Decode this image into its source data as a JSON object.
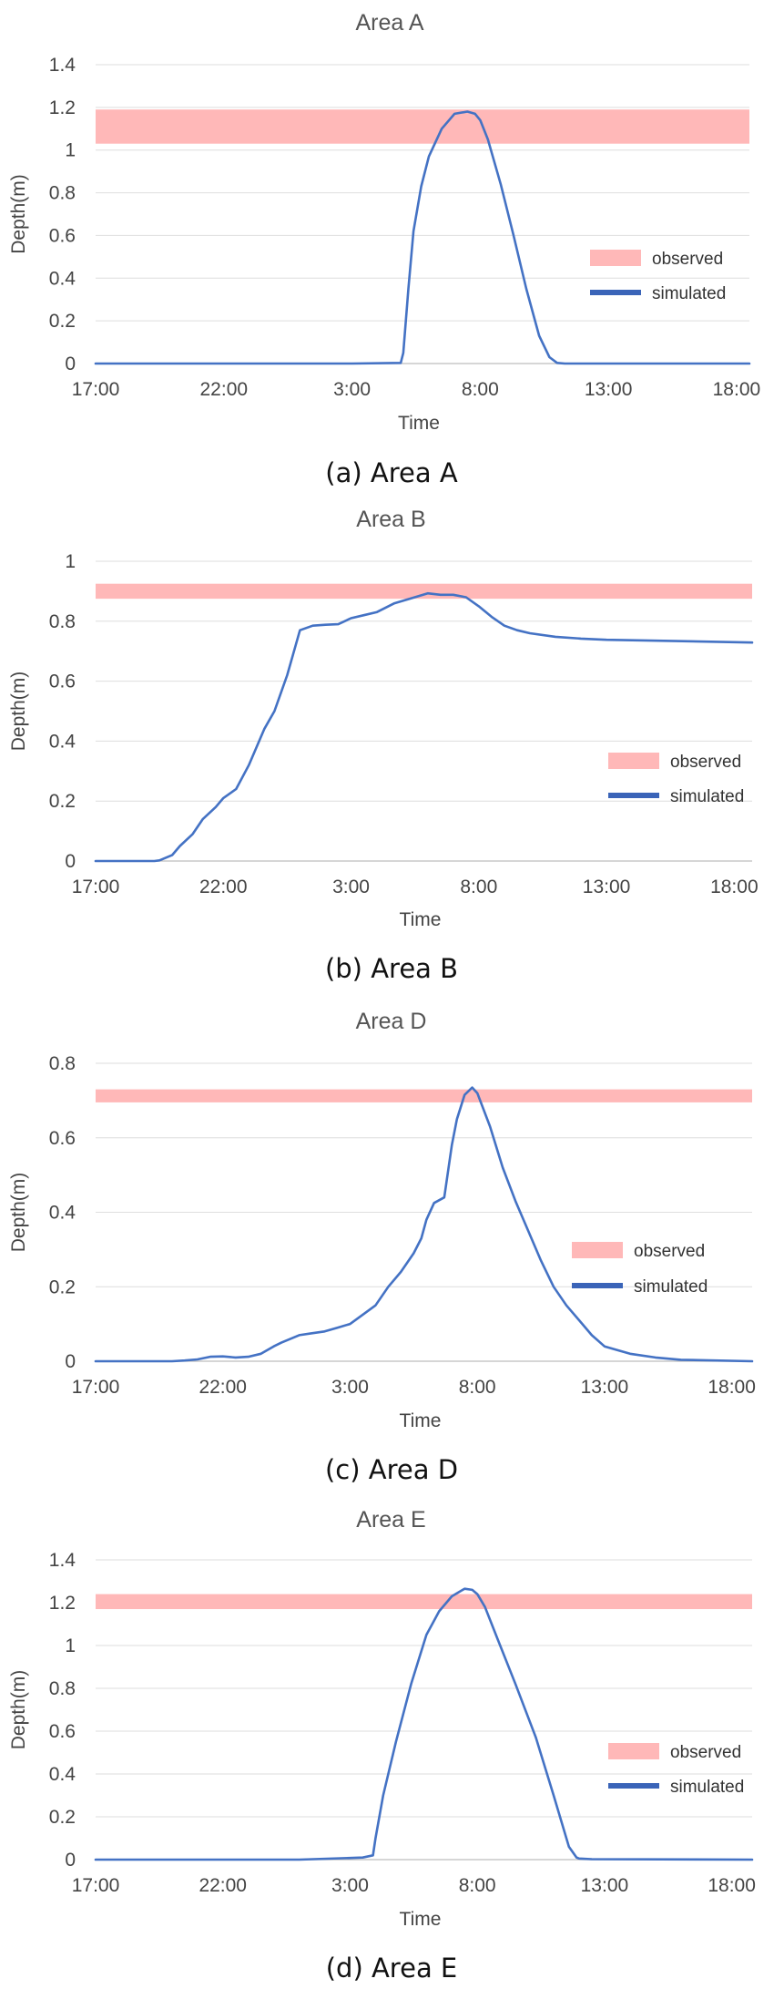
{
  "chart_data": [
    {
      "type": "line",
      "title": "Area A",
      "caption": "(a) Area A",
      "xlabel": "Time",
      "ylabel": "Depth(m)",
      "x_ticks": [
        0,
        5,
        10,
        15,
        20,
        25
      ],
      "x_tick_labels": [
        "17:00",
        "22:00",
        "3:00",
        "8:00",
        "13:00",
        "18:00"
      ],
      "xlim": [
        0,
        25.5
      ],
      "y_ticks": [
        0,
        0.2,
        0.4,
        0.6,
        0.8,
        1,
        1.2,
        1.4
      ],
      "y_tick_labels": [
        "0",
        "0.2",
        "0.4",
        "0.6",
        "0.8",
        "1",
        "1.2",
        "1.4"
      ],
      "ylim": [
        0,
        1.4
      ],
      "observed_band": [
        1.03,
        1.19
      ],
      "legend": [
        "observed",
        "simulated"
      ],
      "legend_position": "right",
      "colors": {
        "observed": "#ffb8b8",
        "simulated": "#4472c4"
      },
      "simulated": {
        "x": [
          0,
          10,
          11.9,
          12.0,
          12.2,
          12.4,
          12.7,
          13.0,
          13.5,
          14.0,
          14.5,
          14.8,
          15.0,
          15.3,
          15.8,
          16.3,
          16.8,
          17.3,
          17.7,
          18.0,
          18.3,
          25.5
        ],
        "y": [
          0,
          0,
          0.003,
          0.05,
          0.35,
          0.62,
          0.83,
          0.97,
          1.1,
          1.17,
          1.18,
          1.17,
          1.14,
          1.05,
          0.84,
          0.6,
          0.35,
          0.13,
          0.03,
          0.003,
          0,
          0
        ]
      }
    },
    {
      "type": "line",
      "title": "Area B",
      "caption": "(b) Area B",
      "xlabel": "Time",
      "ylabel": "Depth(m)",
      "x_ticks": [
        0,
        5,
        10,
        15,
        20,
        25
      ],
      "x_tick_labels": [
        "17:00",
        "22:00",
        "3:00",
        "8:00",
        "13:00",
        "18:00"
      ],
      "xlim": [
        0,
        25.7
      ],
      "y_ticks": [
        0,
        0.2,
        0.4,
        0.6,
        0.8,
        1
      ],
      "y_tick_labels": [
        "0",
        "0.2",
        "0.4",
        "0.6",
        "0.8",
        "1"
      ],
      "ylim": [
        0,
        1
      ],
      "observed_band": [
        0.875,
        0.925
      ],
      "legend": [
        "observed",
        "simulated"
      ],
      "legend_position": "right",
      "colors": {
        "observed": "#ffb8b8",
        "simulated": "#4472c4"
      },
      "simulated": {
        "x": [
          0,
          2.3,
          2.5,
          3.0,
          3.3,
          3.8,
          4.2,
          4.7,
          5.0,
          5.5,
          6.0,
          6.6,
          7.0,
          7.5,
          8.0,
          8.5,
          9.0,
          9.5,
          10.0,
          10.5,
          11.0,
          11.7,
          12.3,
          13.0,
          13.5,
          14.0,
          14.5,
          15.0,
          15.5,
          16.0,
          16.5,
          17.0,
          18.0,
          19.0,
          20.0,
          22.0,
          25.7
        ],
        "y": [
          0,
          0,
          0.002,
          0.02,
          0.05,
          0.09,
          0.14,
          0.18,
          0.21,
          0.24,
          0.32,
          0.44,
          0.5,
          0.62,
          0.77,
          0.785,
          0.788,
          0.79,
          0.81,
          0.82,
          0.83,
          0.86,
          0.875,
          0.893,
          0.888,
          0.888,
          0.88,
          0.85,
          0.815,
          0.785,
          0.77,
          0.76,
          0.748,
          0.742,
          0.738,
          0.735,
          0.729
        ]
      }
    },
    {
      "type": "line",
      "title": "Area D",
      "caption": "(c) Area D",
      "xlabel": "Time",
      "ylabel": "Depth(m)",
      "x_ticks": [
        0,
        5,
        10,
        15,
        20,
        25
      ],
      "x_tick_labels": [
        "17:00",
        "22:00",
        "3:00",
        "8:00",
        "13:00",
        "18:00"
      ],
      "xlim": [
        0,
        25.8
      ],
      "y_ticks": [
        0,
        0.2,
        0.4,
        0.6,
        0.8
      ],
      "y_tick_labels": [
        "0",
        "0.2",
        "0.4",
        "0.6",
        "0.8"
      ],
      "ylim": [
        0,
        0.8
      ],
      "observed_band": [
        0.695,
        0.73
      ],
      "legend": [
        "observed",
        "simulated"
      ],
      "legend_position": "right",
      "colors": {
        "observed": "#ffb8b8",
        "simulated": "#4472c4"
      },
      "simulated": {
        "x": [
          0,
          3.0,
          3.5,
          4.0,
          4.5,
          5.0,
          5.5,
          6.0,
          6.5,
          7.0,
          7.3,
          8.0,
          8.5,
          9.0,
          9.5,
          10.0,
          10.5,
          11.0,
          11.5,
          12.0,
          12.5,
          12.8,
          13.0,
          13.3,
          13.7,
          14.0,
          14.2,
          14.5,
          14.8,
          15.0,
          15.5,
          16.0,
          16.5,
          17.0,
          17.5,
          18.0,
          18.5,
          19.0,
          19.5,
          20.0,
          21.0,
          22.0,
          23.0,
          25.8
        ],
        "y": [
          0,
          0,
          0.002,
          0.005,
          0.012,
          0.013,
          0.01,
          0.012,
          0.02,
          0.04,
          0.05,
          0.07,
          0.075,
          0.08,
          0.09,
          0.1,
          0.125,
          0.15,
          0.2,
          0.24,
          0.29,
          0.33,
          0.38,
          0.425,
          0.44,
          0.58,
          0.65,
          0.715,
          0.735,
          0.72,
          0.63,
          0.52,
          0.43,
          0.35,
          0.27,
          0.2,
          0.15,
          0.11,
          0.07,
          0.04,
          0.02,
          0.01,
          0.004,
          0
        ]
      }
    },
    {
      "type": "line",
      "title": "Area E",
      "caption": "(d) Area E",
      "xlabel": "Time",
      "ylabel": "Depth(m)",
      "x_ticks": [
        0,
        5,
        10,
        15,
        20,
        25
      ],
      "x_tick_labels": [
        "17:00",
        "22:00",
        "3:00",
        "8:00",
        "13:00",
        "18:00"
      ],
      "xlim": [
        0,
        25.8
      ],
      "y_ticks": [
        0,
        0.2,
        0.4,
        0.6,
        0.8,
        1,
        1.2,
        1.4
      ],
      "y_tick_labels": [
        "0",
        "0.2",
        "0.4",
        "0.6",
        "0.8",
        "1",
        "1.2",
        "1.4"
      ],
      "ylim": [
        0,
        1.4
      ],
      "observed_band": [
        1.17,
        1.24
      ],
      "legend": [
        "observed",
        "simulated"
      ],
      "legend_position": "right",
      "colors": {
        "observed": "#ffb8b8",
        "simulated": "#4472c4"
      },
      "simulated": {
        "x": [
          0,
          8.0,
          10.5,
          10.9,
          11.0,
          11.3,
          11.8,
          12.4,
          13.0,
          13.5,
          14.0,
          14.5,
          14.8,
          15.0,
          15.3,
          15.8,
          16.5,
          17.3,
          18.0,
          18.6,
          18.9,
          19.0,
          19.5,
          25.8
        ],
        "y": [
          0,
          0,
          0.01,
          0.02,
          0.1,
          0.3,
          0.55,
          0.82,
          1.05,
          1.16,
          1.23,
          1.265,
          1.26,
          1.24,
          1.18,
          1.03,
          0.82,
          0.57,
          0.3,
          0.06,
          0.01,
          0.005,
          0.002,
          0
        ]
      }
    }
  ]
}
